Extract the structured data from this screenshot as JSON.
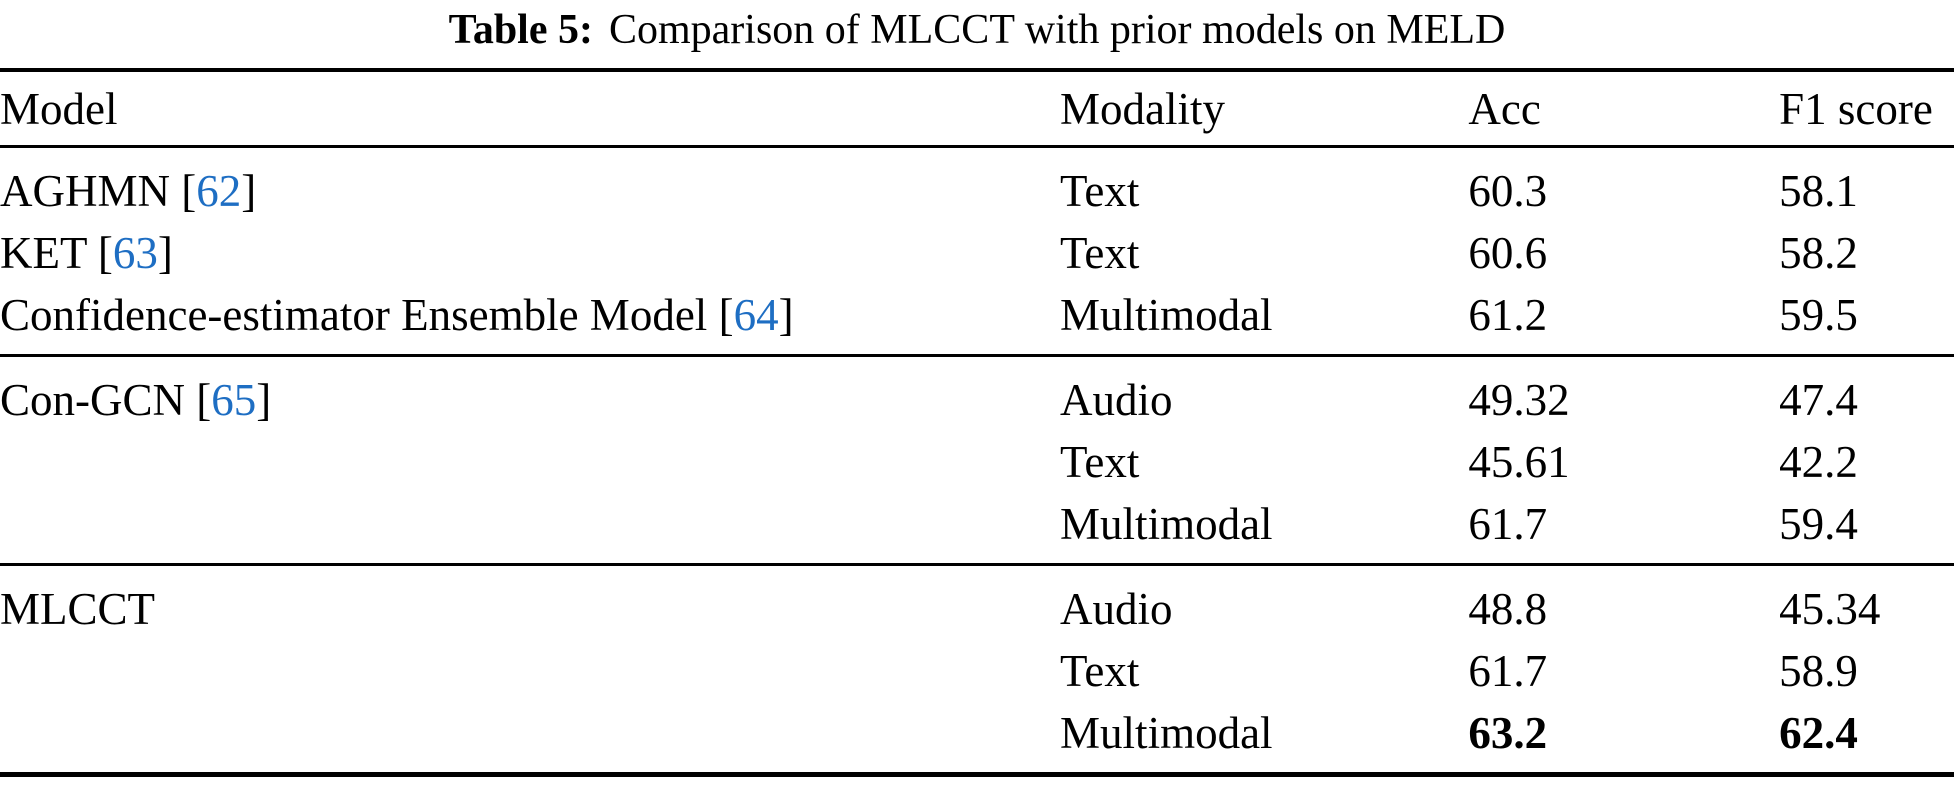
{
  "caption": {
    "label": "Table 5:",
    "text": "Comparison of MLCCT with prior models on MELD"
  },
  "table": {
    "columns": [
      "Model",
      "Modality",
      "Acc",
      "F1 score"
    ],
    "groups": [
      {
        "rows": [
          {
            "model": "AGHMN",
            "citation": "62",
            "modality": "Text",
            "acc": "60.3",
            "f1": "58.1",
            "bold_values": false
          },
          {
            "model": "KET",
            "citation": "63",
            "modality": "Text",
            "acc": "60.6",
            "f1": "58.2",
            "bold_values": false
          },
          {
            "model": "Confidence-estimator Ensemble Model",
            "citation": "64",
            "modality": "Multimodal",
            "acc": "61.2",
            "f1": "59.5",
            "bold_values": false
          }
        ]
      },
      {
        "rows": [
          {
            "model": "Con-GCN",
            "citation": "65",
            "modality": "Audio",
            "acc": "49.32",
            "f1": "47.4",
            "bold_values": false
          },
          {
            "model": "",
            "citation": "",
            "modality": "Text",
            "acc": "45.61",
            "f1": "42.2",
            "bold_values": false
          },
          {
            "model": "",
            "citation": "",
            "modality": "Multimodal",
            "acc": "61.7",
            "f1": "59.4",
            "bold_values": false
          }
        ]
      },
      {
        "rows": [
          {
            "model": "MLCCT",
            "citation": "",
            "modality": "Audio",
            "acc": "48.8",
            "f1": "45.34",
            "bold_values": false
          },
          {
            "model": "",
            "citation": "",
            "modality": "Text",
            "acc": "61.7",
            "f1": "58.9",
            "bold_values": false
          },
          {
            "model": "",
            "citation": "",
            "modality": "Multimodal",
            "acc": "63.2",
            "f1": "62.4",
            "bold_values": true
          }
        ]
      }
    ]
  },
  "colors": {
    "text": "#000000",
    "background": "#ffffff",
    "rule": "#000000",
    "citation": "#1e6ec3"
  }
}
